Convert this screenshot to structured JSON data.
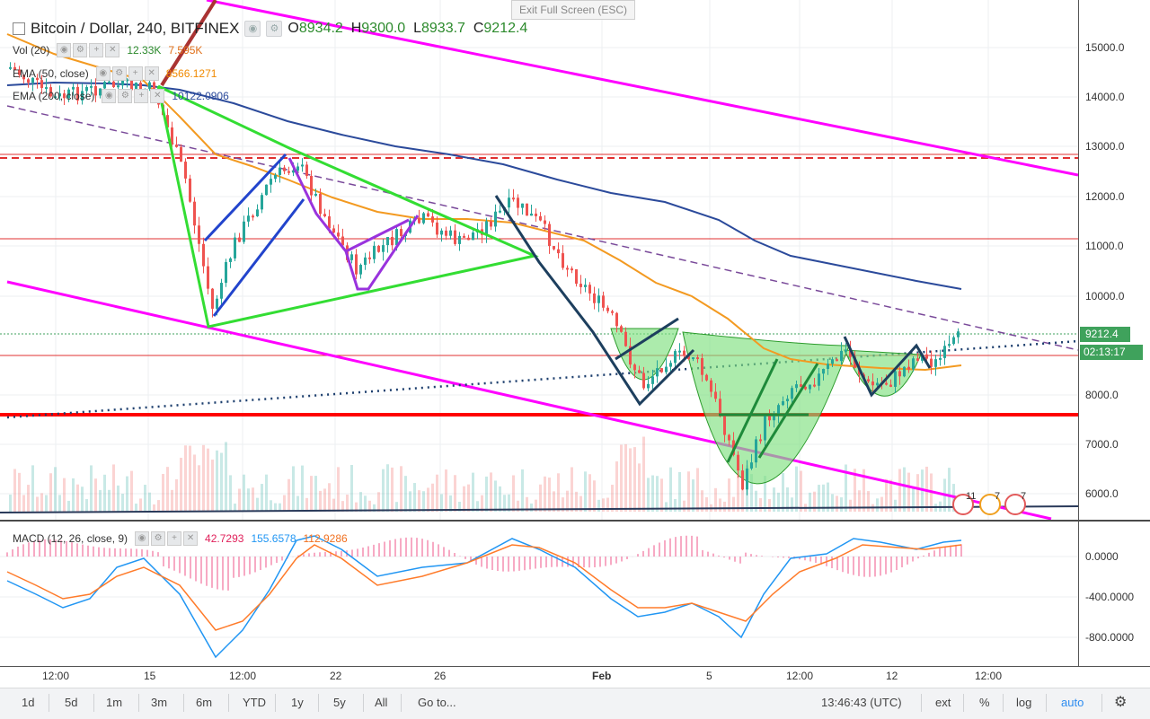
{
  "exit_fullscreen": "Exit Full Screen (ESC)",
  "header": {
    "symbol": "Bitcoin / Dollar, 240, BITFINEX",
    "open_label": "O",
    "open": "8934.2",
    "high_label": "H",
    "high": "9300.0",
    "low_label": "L",
    "low": "8933.7",
    "close_label": "C",
    "close": "9212.4"
  },
  "indicators": {
    "vol_label": "Vol (20)",
    "vol_value1": "12.33K",
    "vol_value2": "7.595K",
    "ema50_label": "EMA (50, close)",
    "ema50_value": "8566.1271",
    "ema200_label": "EMA (200, close)",
    "ema200_value": "10122.0906"
  },
  "macd": {
    "label": "MACD (12, 26, close, 9)",
    "hist": "42.7293",
    "macd": "155.6578",
    "signal": "112.9286"
  },
  "price_axis": [
    "15000.0",
    "14000.0",
    "13000.0",
    "12000.0",
    "11000.0",
    "10000.0",
    "8000.0",
    "7000.0",
    "6000.0"
  ],
  "current_price": "9212.4",
  "countdown": "02:13:17",
  "macd_axis": [
    "0.0000",
    "-400.0000",
    "-800.0000"
  ],
  "time_axis": [
    "12:00",
    "15",
    "12:00",
    "22",
    "26",
    "Feb",
    "5",
    "12:00",
    "12",
    "12:00"
  ],
  "badges": [
    "11",
    "7",
    "7"
  ],
  "bottom_bar": {
    "ranges": [
      "1d",
      "5d",
      "1m",
      "3m",
      "6m",
      "YTD",
      "1y",
      "5y",
      "All"
    ],
    "goto": "Go to...",
    "clock": "13:46:43 (UTC)",
    "ext": "ext",
    "percent": "%",
    "log": "log",
    "auto": "auto"
  },
  "colors": {
    "up": "#26a69a",
    "down": "#ef5350",
    "accent_green": "#3fa25c",
    "magenta": "#ff00ff",
    "ema50": "#f39a21",
    "ema200": "#2b4a9b",
    "red_support": "#ff0000"
  },
  "icons": [
    "eye-icon",
    "gear-icon",
    "plus-icon",
    "close-icon",
    "more-icon",
    "settings-icon"
  ]
}
